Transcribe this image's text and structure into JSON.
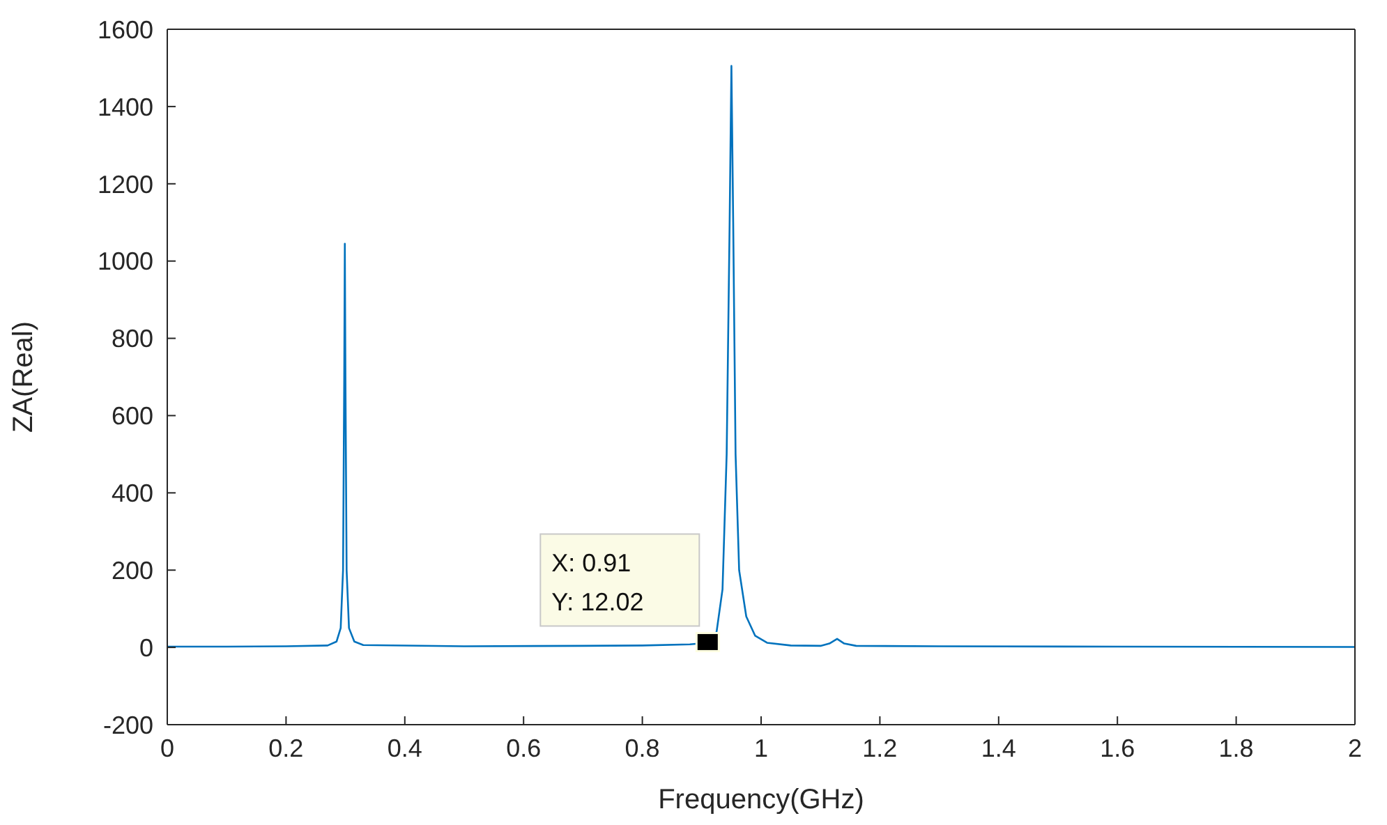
{
  "chart_data": {
    "type": "line",
    "xlabel": "Frequency(GHz)",
    "ylabel": "ZA(Real)",
    "x": [
      0,
      0.1,
      0.2,
      0.27,
      0.285,
      0.292,
      0.296,
      0.298,
      0.299,
      0.3,
      0.302,
      0.306,
      0.315,
      0.33,
      0.5,
      0.7,
      0.8,
      0.88,
      0.91,
      0.925,
      0.935,
      0.942,
      0.947,
      0.95,
      0.953,
      0.957,
      0.963,
      0.975,
      0.99,
      1.01,
      1.05,
      1.1,
      1.115,
      1.128,
      1.14,
      1.16,
      1.3,
      1.6,
      2
    ],
    "series": [
      {
        "color": "#0072bd",
        "values": [
          2,
          2,
          3,
          5,
          15,
          50,
          200,
          700,
          1045,
          700,
          200,
          50,
          15,
          6,
          3,
          4,
          5,
          8,
          12.02,
          40,
          150,
          500,
          1100,
          1505,
          1100,
          500,
          200,
          80,
          30,
          12,
          5,
          4,
          10,
          22,
          10,
          4,
          3,
          2,
          1
        ]
      }
    ],
    "xlim": [
      0,
      2
    ],
    "xticks": [
      0,
      0.2,
      0.4,
      0.6,
      0.8,
      1,
      1.2,
      1.4,
      1.6,
      1.8,
      2
    ],
    "ylim": [
      -200,
      1600
    ],
    "yticks": [
      -200,
      0,
      200,
      400,
      600,
      800,
      1000,
      1200,
      1400,
      1600
    ],
    "grid": false,
    "marker": "none",
    "line_style": "solid",
    "annotations": [
      {
        "text": "X: 0.91\nY: 12.02",
        "x": 0.91,
        "y": 12.02
      }
    ]
  }
}
